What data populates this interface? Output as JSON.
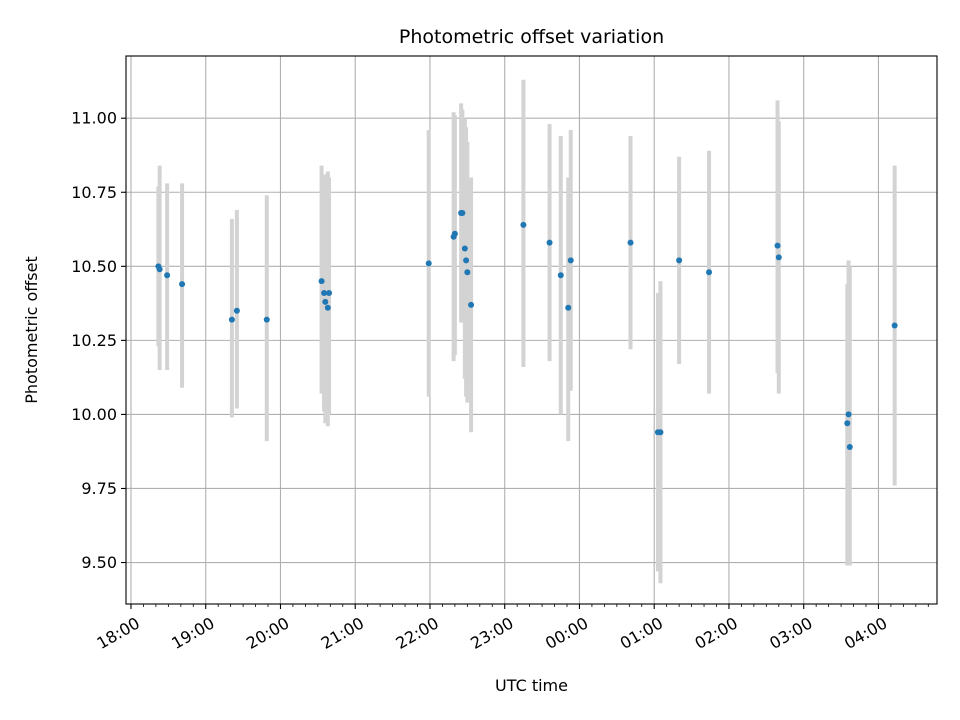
{
  "chart_data": {
    "type": "scatter",
    "title": "Photometric offset variation",
    "xlabel": "UTC time",
    "ylabel": "Photometric offset",
    "x_unit": "UTC time (hh:mm), day 1 18:00 through day 2 04:00",
    "xlim": [
      "17:56",
      "04:47"
    ],
    "ylim": [
      9.36,
      11.21
    ],
    "x_ticks": [
      "18:00",
      "19:00",
      "20:00",
      "21:00",
      "22:00",
      "23:00",
      "00:00",
      "01:00",
      "02:00",
      "03:00",
      "04:00"
    ],
    "y_ticks": [
      "9.50",
      "9.75",
      "10.00",
      "10.25",
      "10.50",
      "10.75",
      "11.00"
    ],
    "grid": true,
    "point_color": "#1f77b4",
    "errorbar_color": "#d3d3d3",
    "series": [
      {
        "points": [
          {
            "t": "18:22",
            "y": 10.5,
            "lo": 10.23,
            "hi": 10.77
          },
          {
            "t": "18:23",
            "y": 10.49,
            "lo": 10.15,
            "hi": 10.84
          },
          {
            "t": "18:29",
            "y": 10.47,
            "lo": 10.15,
            "hi": 10.78
          },
          {
            "t": "18:41",
            "y": 10.44,
            "lo": 10.09,
            "hi": 10.78
          },
          {
            "t": "19:21",
            "y": 10.32,
            "lo": 9.99,
            "hi": 10.66
          },
          {
            "t": "19:25",
            "y": 10.35,
            "lo": 10.02,
            "hi": 10.69
          },
          {
            "t": "19:49",
            "y": 10.32,
            "lo": 9.91,
            "hi": 10.74
          },
          {
            "t": "20:33",
            "y": 10.45,
            "lo": 10.07,
            "hi": 10.84
          },
          {
            "t": "20:35",
            "y": 10.41,
            "lo": 10.01,
            "hi": 10.8
          },
          {
            "t": "20:36",
            "y": 10.38,
            "lo": 9.97,
            "hi": 10.81
          },
          {
            "t": "20:38",
            "y": 10.36,
            "lo": 9.96,
            "hi": 10.82
          },
          {
            "t": "20:39",
            "y": 10.41,
            "lo": 10.0,
            "hi": 10.8
          },
          {
            "t": "21:59",
            "y": 10.51,
            "lo": 10.06,
            "hi": 10.96
          },
          {
            "t": "22:19",
            "y": 10.6,
            "lo": 10.18,
            "hi": 11.02
          },
          {
            "t": "22:20",
            "y": 10.61,
            "lo": 10.2,
            "hi": 11.01
          },
          {
            "t": "22:25",
            "y": 10.68,
            "lo": 10.31,
            "hi": 11.05
          },
          {
            "t": "22:26",
            "y": 10.68,
            "lo": 10.32,
            "hi": 11.03
          },
          {
            "t": "22:28",
            "y": 10.56,
            "lo": 10.12,
            "hi": 11.0
          },
          {
            "t": "22:29",
            "y": 10.52,
            "lo": 10.06,
            "hi": 10.97
          },
          {
            "t": "22:30",
            "y": 10.48,
            "lo": 10.04,
            "hi": 10.92
          },
          {
            "t": "22:33",
            "y": 10.37,
            "lo": 9.94,
            "hi": 10.8
          },
          {
            "t": "23:15",
            "y": 10.64,
            "lo": 10.16,
            "hi": 11.13
          },
          {
            "t": "23:36",
            "y": 10.58,
            "lo": 10.18,
            "hi": 10.98
          },
          {
            "t": "23:45",
            "y": 10.47,
            "lo": 10.0,
            "hi": 10.94
          },
          {
            "t": "23:51",
            "y": 10.36,
            "lo": 9.91,
            "hi": 10.8
          },
          {
            "t": "23:53",
            "y": 10.52,
            "lo": 10.08,
            "hi": 10.96
          },
          {
            "t": "00:41",
            "y": 10.58,
            "lo": 10.22,
            "hi": 10.94
          },
          {
            "t": "01:03",
            "y": 9.94,
            "lo": 9.47,
            "hi": 10.41
          },
          {
            "t": "01:05",
            "y": 9.94,
            "lo": 9.43,
            "hi": 10.45
          },
          {
            "t": "01:20",
            "y": 10.52,
            "lo": 10.17,
            "hi": 10.87
          },
          {
            "t": "01:44",
            "y": 10.48,
            "lo": 10.07,
            "hi": 10.89
          },
          {
            "t": "02:39",
            "y": 10.57,
            "lo": 10.14,
            "hi": 11.06
          },
          {
            "t": "02:40",
            "y": 10.53,
            "lo": 10.07,
            "hi": 10.99
          },
          {
            "t": "03:35",
            "y": 9.97,
            "lo": 9.49,
            "hi": 10.44
          },
          {
            "t": "03:36",
            "y": 10.0,
            "lo": 9.49,
            "hi": 10.52
          },
          {
            "t": "03:37",
            "y": 9.89,
            "lo": 9.49,
            "hi": 10.5
          },
          {
            "t": "04:13",
            "y": 10.3,
            "lo": 9.76,
            "hi": 10.84
          }
        ]
      }
    ]
  }
}
